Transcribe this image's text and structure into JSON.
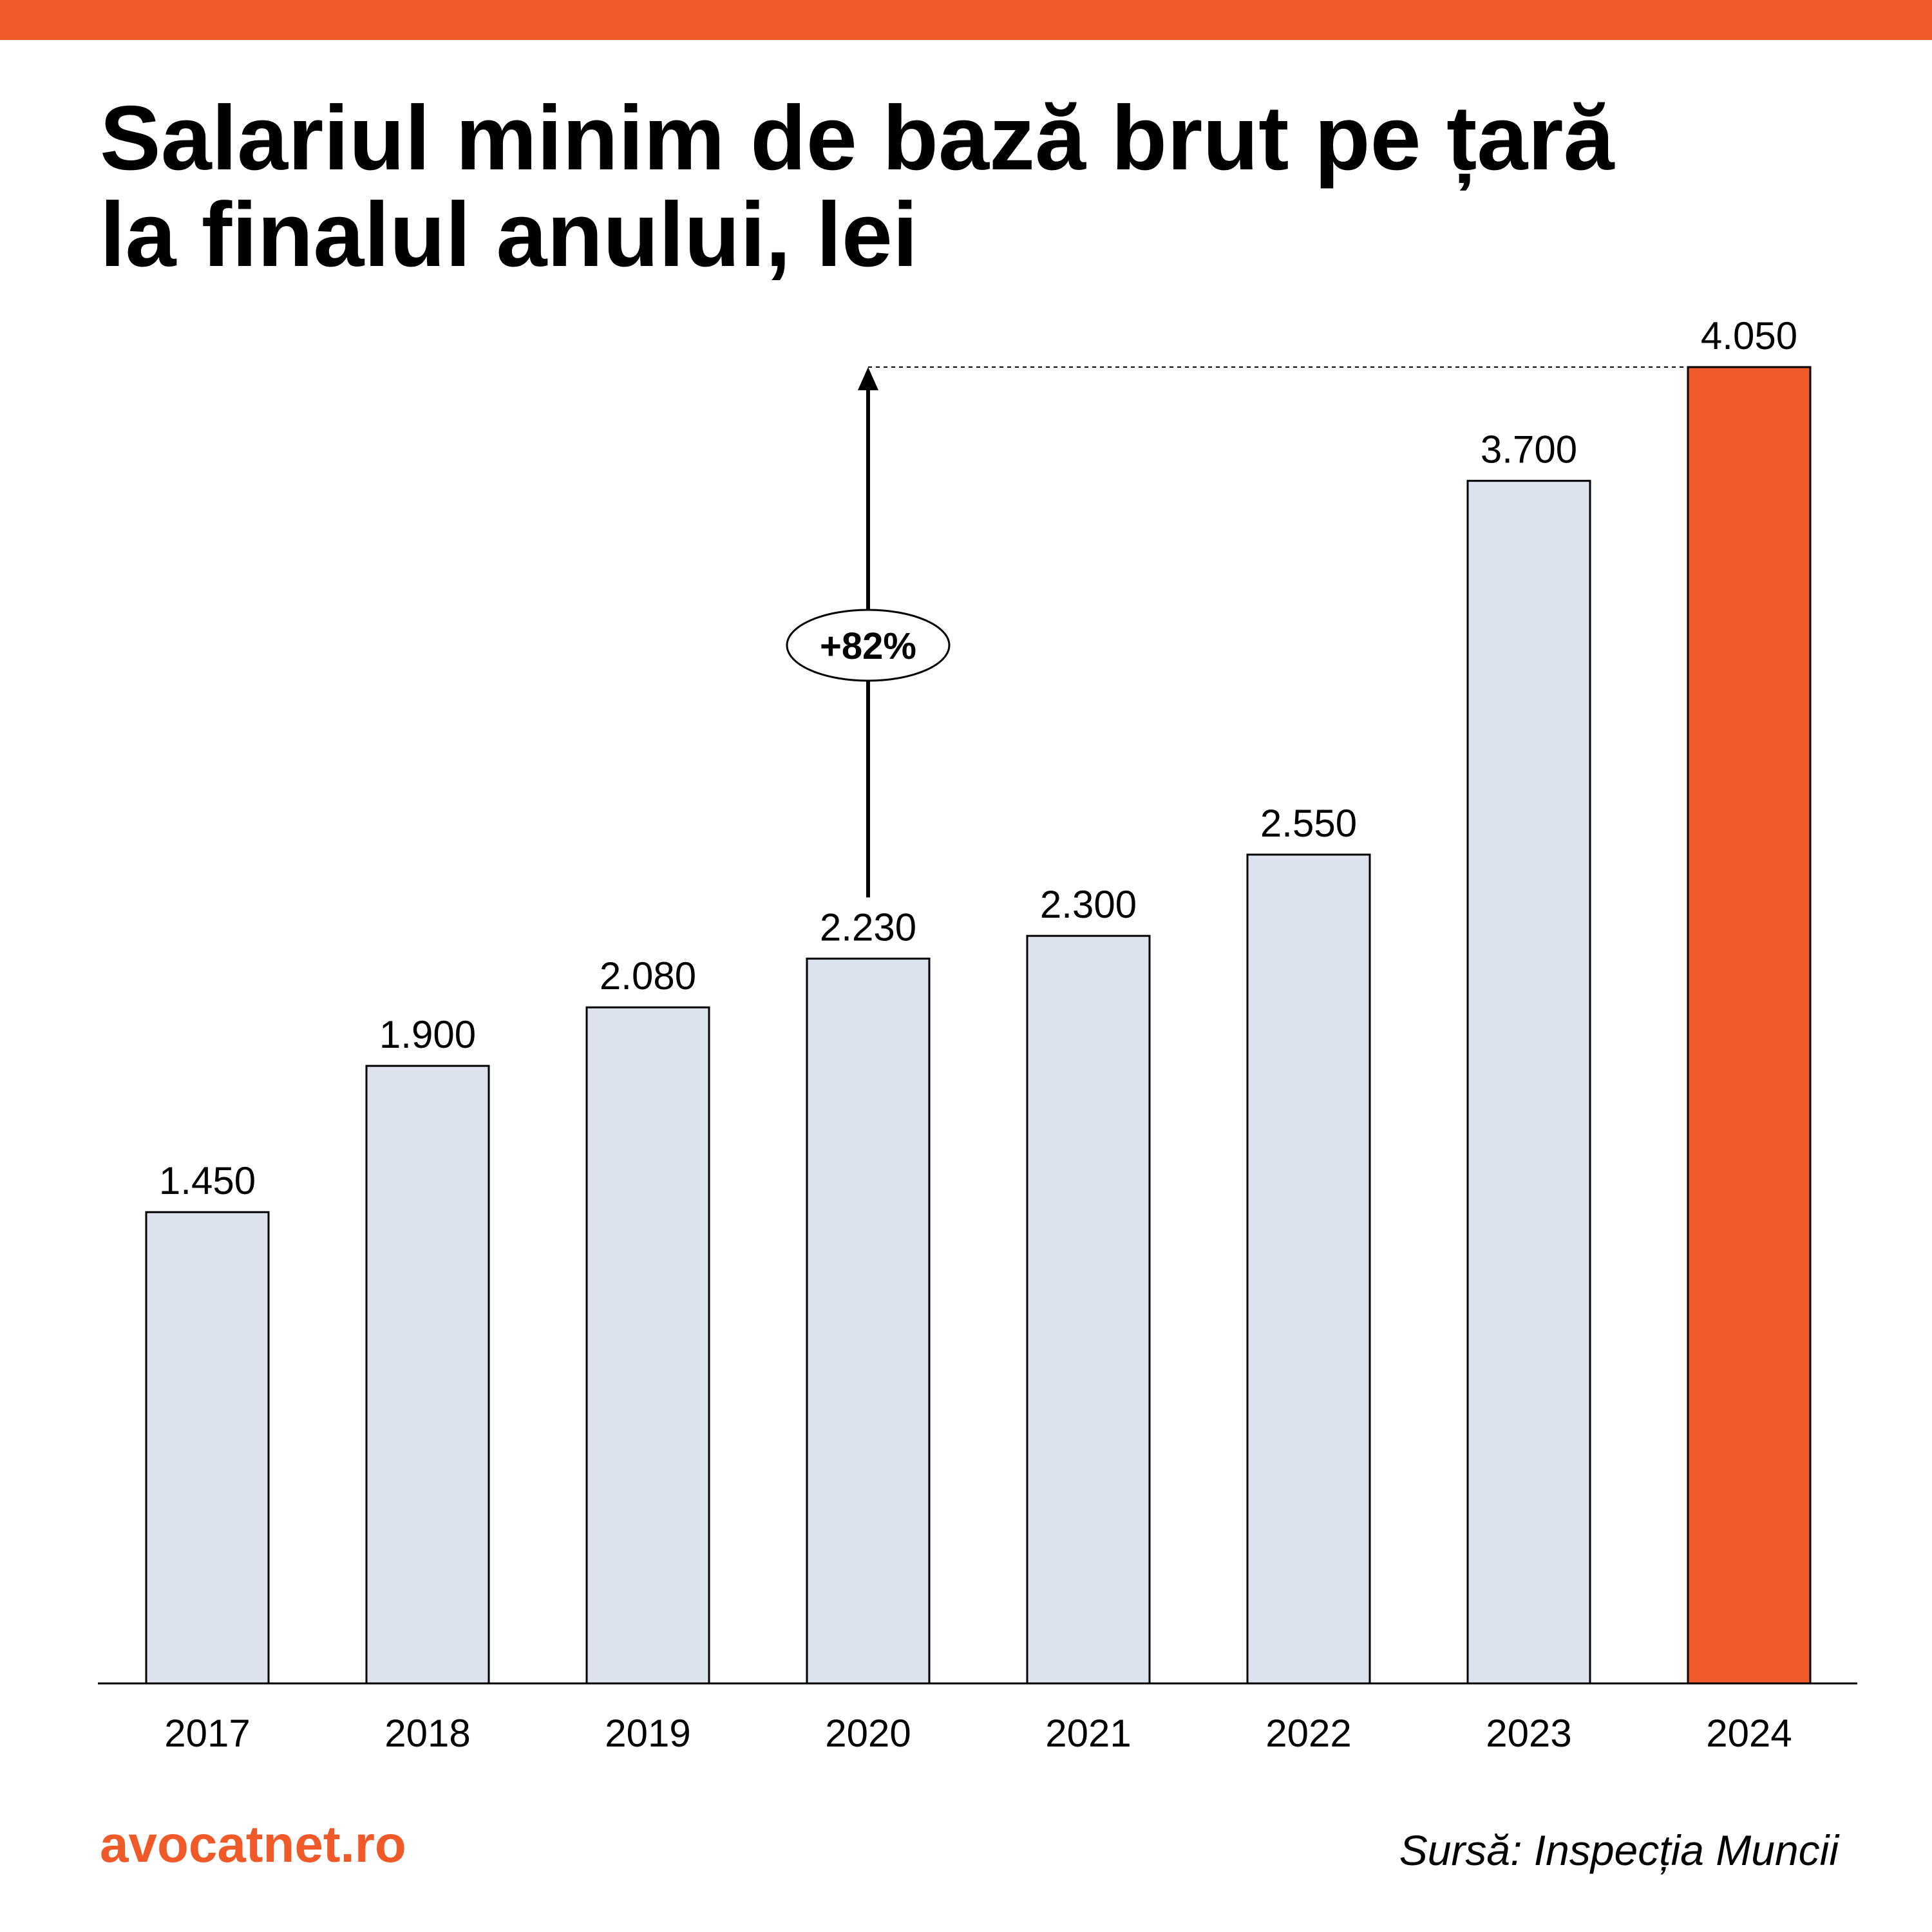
{
  "title": "Salariul minim de bază brut pe țară\nla finalul anului, lei",
  "brand": "avocatnet.ro",
  "source": "Sursă: Inspecția Muncii",
  "colors": {
    "accent": "#f05a28",
    "bar": "#dde3ee",
    "highlight_bar": "#f05a28",
    "text": "#000000"
  },
  "chart_data": {
    "type": "bar",
    "title": "Salariul minim de bază brut pe țară la finalul anului, lei",
    "categories": [
      "2017",
      "2018",
      "2019",
      "2020",
      "2021",
      "2022",
      "2023",
      "2024"
    ],
    "values": [
      1450,
      1900,
      2080,
      2230,
      2300,
      2550,
      3700,
      4050
    ],
    "value_labels": [
      "1.450",
      "1.900",
      "2.080",
      "2.230",
      "2.300",
      "2.550",
      "3.700",
      "4.050"
    ],
    "highlight_category": "2024",
    "ylim": [
      0,
      4050
    ],
    "grid": false,
    "annotation": {
      "text": "+82%",
      "from_category": "2020",
      "to_category": "2024"
    }
  }
}
